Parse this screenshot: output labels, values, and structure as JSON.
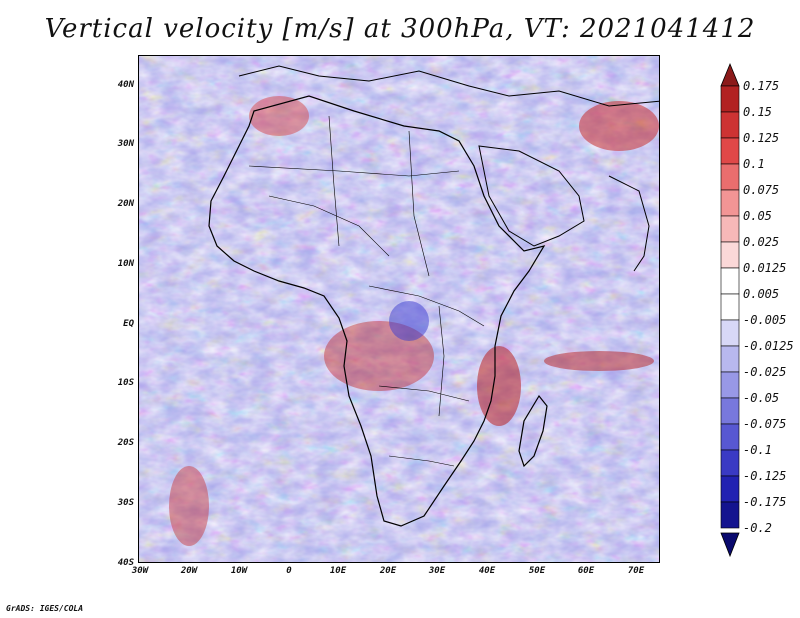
{
  "title": "Vertical velocity [m/s] at 300hPa, VT: 2021041412",
  "footer": "GrADS: IGES/COLA",
  "map": {
    "lat_labels": [
      "40N",
      "30N",
      "20N",
      "10N",
      "EQ",
      "10S",
      "20S",
      "30S",
      "40S"
    ],
    "lon_labels": [
      "30W",
      "20W",
      "10W",
      "0",
      "10E",
      "20E",
      "30E",
      "40E",
      "50E",
      "60E",
      "70E"
    ]
  },
  "colorbar": {
    "levels": [
      "0.175",
      "0.15",
      "0.125",
      "0.1",
      "0.075",
      "0.05",
      "0.025",
      "0.0125",
      "0.005",
      "-0.005",
      "-0.0125",
      "-0.025",
      "-0.05",
      "-0.075",
      "-0.1",
      "-0.125",
      "-0.175",
      "-0.2"
    ],
    "colors": [
      "#8b1a1a",
      "#b22222",
      "#cd3333",
      "#e04848",
      "#ea6e6e",
      "#f29595",
      "#f7b8b8",
      "#fbd8d8",
      "#ffffff",
      "#ffffff",
      "#d8d8f7",
      "#b8b8ef",
      "#9898e6",
      "#7878dc",
      "#5858d2",
      "#3a3ac4",
      "#2222b2",
      "#14148f",
      "#0a0a6e"
    ]
  }
}
